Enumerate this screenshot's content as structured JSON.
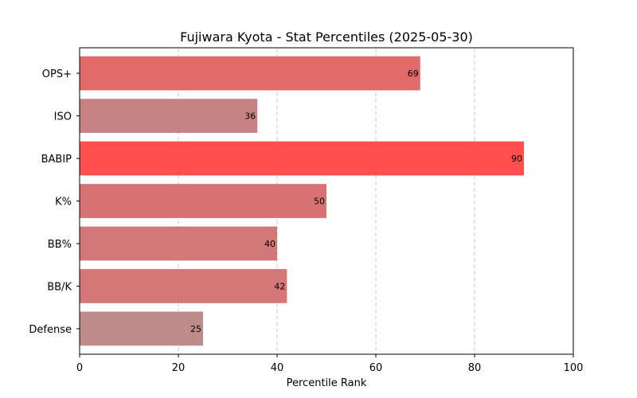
{
  "chart_data": {
    "type": "bar",
    "orientation": "horizontal",
    "title": "Fujiwara Kyota - Stat Percentiles (2025-05-30)",
    "xlabel": "Percentile Rank",
    "ylabel": "",
    "xlim": [
      0,
      100
    ],
    "xticks": [
      "0",
      "20",
      "40",
      "60",
      "80",
      "100"
    ],
    "grid": "vertical dashed",
    "categories": [
      "OPS+",
      "ISO",
      "BABIP",
      "K%",
      "BB%",
      "BB/K",
      "Defense"
    ],
    "values": [
      69,
      36,
      90,
      50,
      40,
      42,
      25
    ],
    "data_labels": [
      "69",
      "36",
      "90",
      "50",
      "40",
      "42",
      "25"
    ],
    "colors": [
      "#e36a6a",
      "#c78383",
      "#ff4f4f",
      "#d77272",
      "#d27878",
      "#d57777",
      "#bf8b8b"
    ]
  }
}
